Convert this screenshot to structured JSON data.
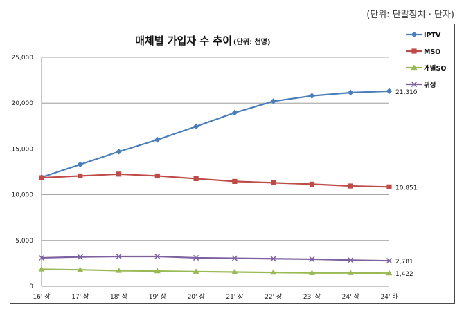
{
  "unit_note": "(단위: 단말장치 · 단자)",
  "chart_data": {
    "type": "line",
    "title": "매체별 가입자 수 추이",
    "subtitle": "(단위: 천명)",
    "xlabel": "",
    "ylabel": "",
    "categories": [
      "16' 상",
      "17' 상",
      "18' 상",
      "19' 상",
      "20' 상",
      "21' 상",
      "22' 상",
      "23' 상",
      "24' 상",
      "24' 하"
    ],
    "ylim": [
      0,
      25000
    ],
    "yticks": [
      0,
      5000,
      10000,
      15000,
      20000,
      25000
    ],
    "ytick_labels": [
      "0",
      "5,000",
      "10,000",
      "15,000",
      "20,000",
      "25,000"
    ],
    "grid": true,
    "legend_position": "right",
    "series": [
      {
        "name": "IPTV",
        "color": "#4a7ebb",
        "marker": "diamond",
        "values": [
          11900,
          13300,
          14700,
          16000,
          17450,
          18950,
          20200,
          20800,
          21150,
          21310
        ],
        "end_label": "21,310"
      },
      {
        "name": "MSO",
        "color": "#be4b48",
        "marker": "square",
        "values": [
          11850,
          12050,
          12250,
          12050,
          11750,
          11450,
          11300,
          11150,
          10950,
          10851
        ],
        "end_label": "10,851"
      },
      {
        "name": "개별SO",
        "color": "#98b954",
        "marker": "triangle",
        "values": [
          1850,
          1800,
          1700,
          1650,
          1600,
          1550,
          1500,
          1450,
          1450,
          1422
        ],
        "end_label": "1,422"
      },
      {
        "name": "위성",
        "color": "#7d60a0",
        "marker": "x",
        "values": [
          3100,
          3200,
          3250,
          3250,
          3100,
          3050,
          3000,
          2950,
          2850,
          2781
        ],
        "end_label": "2,781"
      }
    ]
  }
}
